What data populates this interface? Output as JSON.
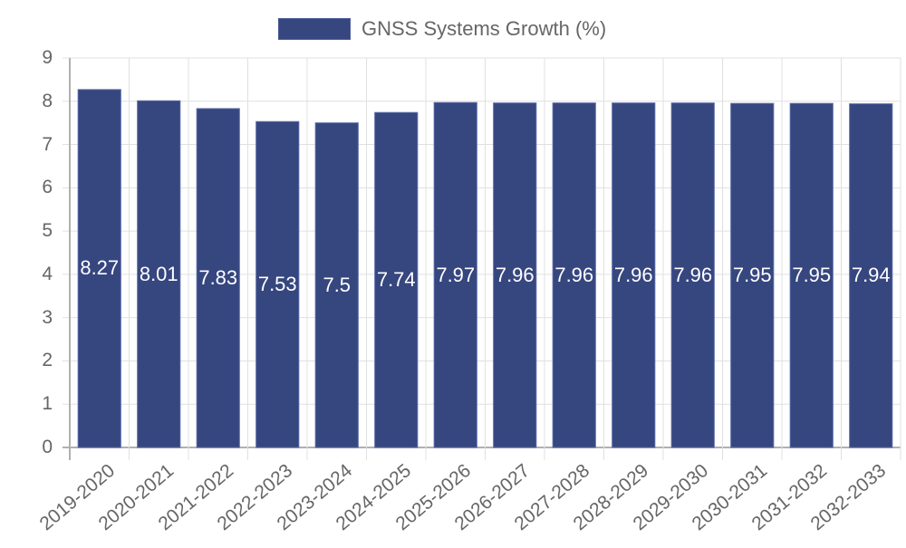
{
  "legend": {
    "label": "GNSS Systems Growth (%)",
    "color": "#36467f"
  },
  "chart_data": {
    "type": "bar",
    "title": "",
    "xlabel": "",
    "ylabel": "",
    "ylim": [
      0,
      9
    ],
    "yticks": [
      "0",
      "1",
      "2",
      "3",
      "4",
      "5",
      "6",
      "7",
      "8",
      "9"
    ],
    "grid": true,
    "legend_position": "top",
    "categories": [
      "2019-2020",
      "2020-2021",
      "2021-2022",
      "2022-2023",
      "2023-2024",
      "2024-2025",
      "2025-2026",
      "2026-2027",
      "2027-2028",
      "2028-2029",
      "2029-2030",
      "2030-2031",
      "2031-2032",
      "2032-2033"
    ],
    "series": [
      {
        "name": "GNSS Systems Growth (%)",
        "color": "#36467f",
        "values": [
          8.27,
          8.01,
          7.83,
          7.53,
          7.5,
          7.74,
          7.97,
          7.96,
          7.96,
          7.96,
          7.96,
          7.95,
          7.95,
          7.94
        ],
        "labels": [
          "8.27",
          "8.01",
          "7.83",
          "7.53",
          "7.5",
          "7.74",
          "7.97",
          "7.96",
          "7.96",
          "7.96",
          "7.96",
          "7.95",
          "7.95",
          "7.94"
        ]
      }
    ]
  }
}
